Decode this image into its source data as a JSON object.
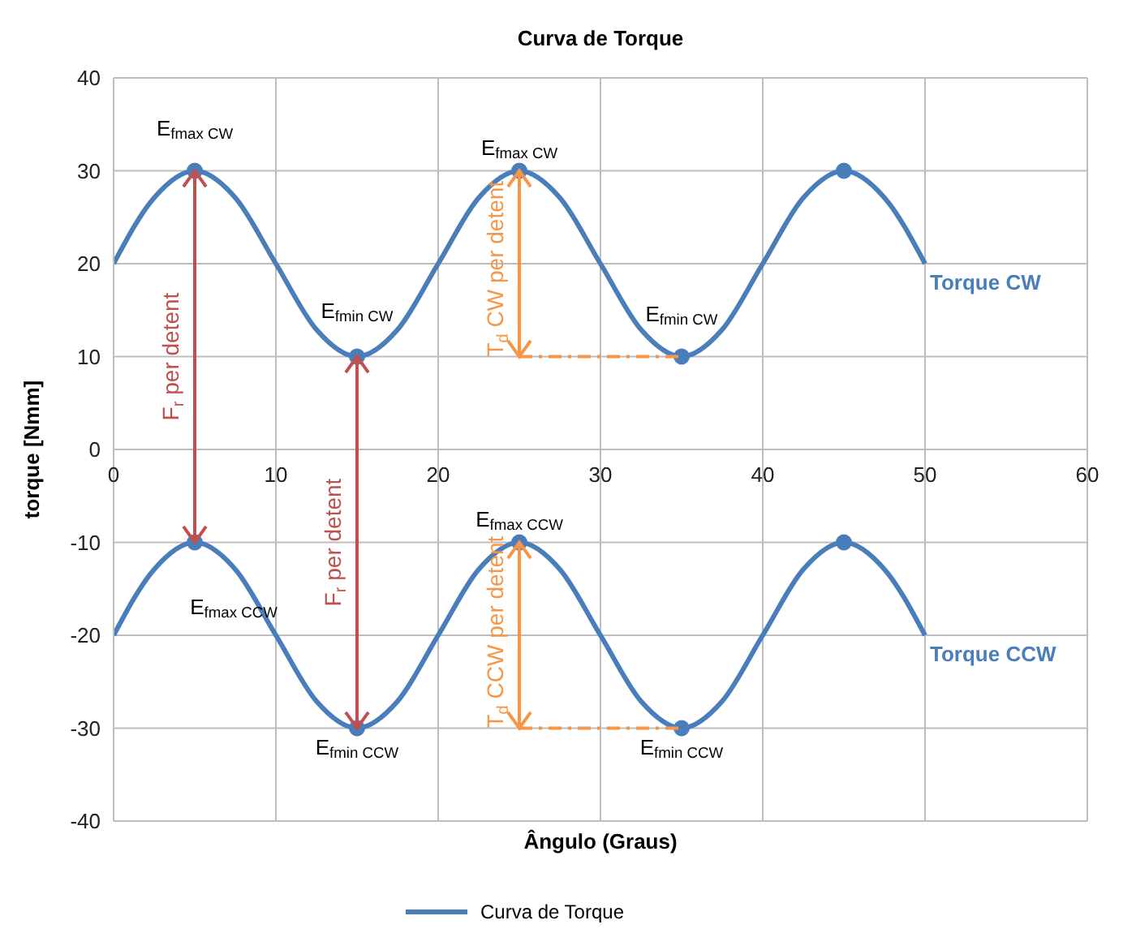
{
  "chart_data": {
    "type": "line",
    "title": "Curva de Torque",
    "xlabel": "Ângulo (Graus)",
    "ylabel": "torque [Nmm]",
    "legend_title": "Curva de Torque",
    "legend": "bottom",
    "grid": true,
    "xlim": [
      0,
      60
    ],
    "xticks": [
      0,
      10,
      20,
      30,
      40,
      50,
      60
    ],
    "ylim": [
      -40,
      40
    ],
    "yticks": [
      -40,
      -30,
      -20,
      -10,
      0,
      10,
      20,
      30,
      40
    ],
    "x": [
      0,
      2.5,
      5,
      7.5,
      10,
      12.5,
      15,
      17.5,
      20,
      22.5,
      25,
      27.5,
      30,
      32.5,
      35,
      37.5,
      40,
      42.5,
      45,
      47.5,
      50
    ],
    "series": [
      {
        "name": "Torque CW",
        "color": "#4a7ebb",
        "values": [
          20,
          27.1,
          30,
          27.1,
          20,
          12.9,
          10,
          12.9,
          20,
          27.1,
          30,
          27.1,
          20,
          12.9,
          10,
          12.9,
          20,
          27.1,
          30,
          27.1,
          20
        ]
      },
      {
        "name": "Torque CCW",
        "color": "#4a7ebb",
        "values": [
          -20,
          -12.9,
          -10,
          -12.9,
          -20,
          -27.1,
          -30,
          -27.1,
          -20,
          -12.9,
          -10,
          -12.9,
          -20,
          -27.1,
          -30,
          -27.1,
          -20,
          -12.9,
          -10,
          -12.9,
          -20
        ]
      },
      {
        "type": "scatter",
        "color": "#4a7ebb",
        "x": [
          5,
          15,
          25,
          35,
          45
        ],
        "values": [
          30,
          10,
          30,
          10,
          30
        ]
      },
      {
        "type": "scatter",
        "color": "#4a7ebb",
        "x": [
          5,
          15,
          25,
          35,
          45
        ],
        "values": [
          -10,
          -30,
          -10,
          -30,
          -10
        ]
      }
    ],
    "annotations": [
      {
        "text": "E$_{fmax CW}$",
        "x": 5,
        "y": 30
      },
      {
        "text": "E$_{fmax CW}$",
        "x": 25,
        "y": 30
      },
      {
        "text": "E$_{fmin CW}$",
        "x": 15,
        "y": 10
      },
      {
        "text": "E$_{fmin CW}$",
        "x": 35,
        "y": 10
      },
      {
        "text": "E$_{fmax CCW}$",
        "x": 5,
        "y": -10
      },
      {
        "text": "E$_{fmax CCW}$",
        "x": 25,
        "y": -10
      },
      {
        "text": "E$_{fmin CCW}$",
        "x": 15,
        "y": -30
      },
      {
        "text": "E$_{fmin CCW}$",
        "x": 35,
        "y": -30
      },
      "F$_{r}$ per detent",
      "F$_{r}$ per detent",
      {
        "text": "T$_{d}$ CW per detent",
        "x": 25,
        "y": 30
      },
      {
        "text": "T$_{d}$ CCW per detent",
        "x": 25,
        "y": -10
      }
    ]
  }
}
